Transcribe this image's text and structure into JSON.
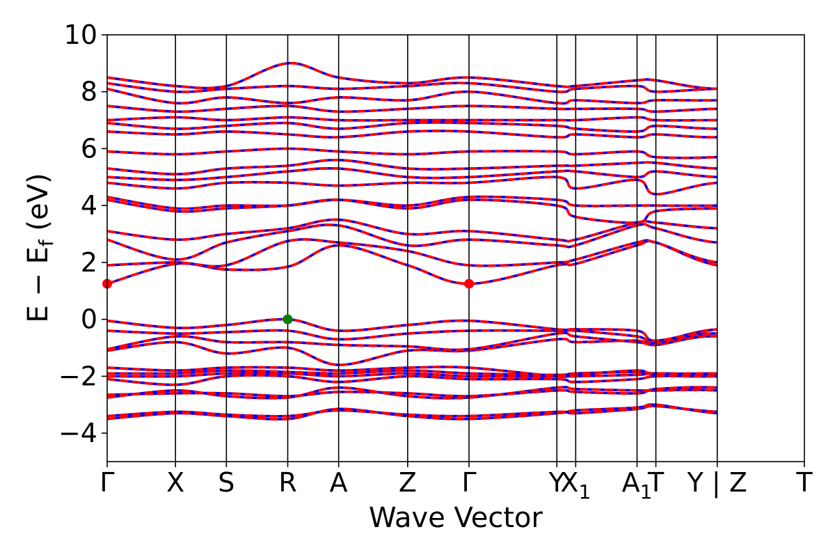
{
  "chart_data": {
    "type": "line",
    "xlabel": "Wave Vector",
    "ylabel": "E − E",
    "ylabel_subscript": "f",
    "ylabel_unit": " (eV)",
    "ylim": [
      -5,
      10
    ],
    "yticks": [
      {
        "value": 10,
        "label": "10"
      },
      {
        "value": 8,
        "label": "8"
      },
      {
        "value": 6,
        "label": "6"
      },
      {
        "value": 4,
        "label": "4"
      },
      {
        "value": 2,
        "label": "2"
      },
      {
        "value": 0,
        "label": "0"
      },
      {
        "value": -2,
        "label": "−2"
      },
      {
        "value": -4,
        "label": "−4"
      }
    ],
    "xlim": [
      0,
      10
    ],
    "kpoints": [
      {
        "x": 0.0,
        "label": "Γ",
        "sub": ""
      },
      {
        "x": 0.98,
        "label": "X",
        "sub": ""
      },
      {
        "x": 1.71,
        "label": "S",
        "sub": ""
      },
      {
        "x": 2.59,
        "label": "R",
        "sub": ""
      },
      {
        "x": 3.32,
        "label": "A",
        "sub": ""
      },
      {
        "x": 4.31,
        "label": "Z",
        "sub": ""
      },
      {
        "x": 5.19,
        "label": "Γ",
        "sub": ""
      },
      {
        "x": 6.45,
        "label": "Y",
        "sub": ""
      },
      {
        "x": 6.72,
        "label": "X",
        "sub": "1"
      },
      {
        "x": 7.6,
        "label": "A",
        "sub": "1"
      },
      {
        "x": 7.87,
        "label": "T",
        "sub": ""
      },
      {
        "x": 8.75,
        "label": "Y | Z",
        "sub": ""
      },
      {
        "x": 10.0,
        "label": "T",
        "sub": ""
      }
    ],
    "series_styles": [
      {
        "color": "#0000ff",
        "style": "solid"
      },
      {
        "color": "#ff0000",
        "style": "dashed"
      }
    ],
    "markers": [
      {
        "name": "cbm",
        "x": 0.0,
        "y": 1.25,
        "color": "#ff0000"
      },
      {
        "name": "cbm",
        "x": 5.19,
        "y": 1.25,
        "color": "#ff0000"
      },
      {
        "name": "vbm",
        "x": 2.59,
        "y": 0.0,
        "color": "#008000"
      }
    ],
    "bands": [
      [
        -3.5,
        -3.3,
        -3.4,
        -3.5,
        -3.15,
        -3.4,
        -3.5,
        -3.3,
        -3.2,
        -3.1,
        -3.0,
        -3.3,
        -3.4,
        -3.0
      ],
      [
        -3.4,
        -3.25,
        -3.35,
        -3.4,
        -3.2,
        -3.35,
        -3.4,
        -3.25,
        -3.3,
        -3.15,
        -3.05,
        -3.25,
        -3.35,
        -3.05
      ],
      [
        -2.75,
        -2.5,
        -2.7,
        -2.75,
        -2.4,
        -2.7,
        -2.75,
        -2.4,
        -2.45,
        -2.5,
        -2.5,
        -2.5,
        -2.8,
        -2.6
      ],
      [
        -2.65,
        -2.6,
        -2.6,
        -2.7,
        -2.55,
        -2.6,
        -2.7,
        -2.5,
        -2.55,
        -2.6,
        -2.45,
        -2.4,
        -2.7,
        -2.5
      ],
      [
        -2.1,
        -2.3,
        -2.0,
        -2.0,
        -2.2,
        -2.0,
        -2.1,
        -2.1,
        -2.2,
        -2.1,
        -2.0,
        -2.0,
        -2.1,
        -2.0
      ],
      [
        -2.0,
        -2.0,
        -1.9,
        -1.9,
        -2.0,
        -1.9,
        -2.0,
        -2.0,
        -2.0,
        -1.95,
        -1.9,
        -1.95,
        -2.0,
        -1.95
      ],
      [
        -1.9,
        -1.9,
        -1.8,
        -1.85,
        -1.9,
        -1.8,
        -1.9,
        -1.95,
        -1.9,
        -1.85,
        -1.9,
        -1.9,
        -1.85,
        -1.9
      ],
      [
        -1.7,
        -1.8,
        -1.7,
        -1.7,
        -1.8,
        -1.7,
        -1.7,
        -2.0,
        -1.95,
        -1.8,
        -1.95,
        -2.0,
        -1.8,
        -1.8
      ],
      [
        -1.1,
        -0.8,
        -1.2,
        -1.0,
        -1.6,
        -1.1,
        -1.1,
        -0.7,
        -0.8,
        -0.75,
        -0.9,
        -0.6,
        -1.2,
        -0.8
      ],
      [
        -1.05,
        -0.6,
        -0.8,
        -0.8,
        -0.9,
        -0.95,
        -1.05,
        -0.5,
        -0.6,
        -0.8,
        -0.85,
        -0.5,
        -1.1,
        -0.85
      ],
      [
        -0.4,
        -0.5,
        -0.45,
        -0.4,
        -0.7,
        -0.5,
        -0.4,
        -0.4,
        -0.4,
        -0.6,
        -0.8,
        -0.35,
        -0.5,
        -0.8
      ],
      [
        -0.05,
        -0.3,
        -0.2,
        0.0,
        -0.4,
        -0.2,
        -0.05,
        -0.35,
        -0.35,
        -0.4,
        -0.75,
        -0.35,
        -0.15,
        -0.75
      ],
      [
        1.25,
        1.95,
        1.75,
        1.85,
        2.6,
        1.9,
        1.25,
        1.9,
        1.95,
        2.6,
        2.7,
        1.9,
        1.8,
        2.7
      ],
      [
        1.9,
        2.0,
        1.9,
        2.75,
        2.7,
        2.4,
        1.9,
        2.0,
        2.1,
        2.7,
        2.7,
        2.0,
        2.0,
        2.7
      ],
      [
        2.8,
        2.1,
        2.7,
        3.1,
        3.3,
        2.6,
        2.8,
        2.6,
        2.6,
        3.3,
        3.2,
        2.7,
        2.8,
        3.4
      ],
      [
        3.1,
        2.8,
        3.0,
        3.2,
        3.5,
        3.0,
        3.1,
        2.8,
        2.8,
        3.4,
        3.4,
        3.2,
        3.2,
        3.4
      ],
      [
        4.2,
        3.8,
        3.9,
        4.0,
        4.2,
        3.9,
        4.2,
        4.0,
        3.6,
        3.4,
        3.8,
        3.9,
        3.9,
        3.8
      ],
      [
        4.3,
        3.9,
        4.0,
        4.0,
        4.2,
        4.0,
        4.3,
        4.2,
        4.0,
        4.0,
        4.0,
        4.0,
        4.1,
        4.4
      ],
      [
        4.8,
        4.6,
        4.8,
        4.8,
        4.7,
        4.8,
        4.8,
        5.0,
        4.6,
        4.9,
        4.4,
        4.8,
        4.8,
        4.5
      ],
      [
        5.0,
        4.9,
        5.0,
        5.2,
        5.3,
        5.0,
        5.0,
        5.2,
        5.2,
        5.0,
        5.2,
        5.0,
        5.0,
        5.0
      ],
      [
        5.3,
        5.1,
        5.3,
        5.4,
        5.6,
        5.3,
        5.3,
        5.4,
        5.4,
        5.5,
        5.5,
        5.3,
        5.3,
        5.2
      ],
      [
        5.9,
        5.8,
        5.9,
        6.0,
        5.9,
        5.8,
        5.9,
        5.9,
        5.8,
        5.9,
        5.7,
        5.7,
        5.9,
        5.8
      ],
      [
        6.6,
        6.5,
        6.6,
        6.5,
        6.4,
        6.6,
        6.6,
        6.4,
        6.5,
        6.4,
        6.5,
        6.4,
        6.6,
        6.5
      ],
      [
        6.9,
        6.7,
        6.8,
        6.9,
        6.7,
        6.9,
        6.9,
        6.8,
        6.7,
        6.6,
        6.8,
        6.7,
        6.8,
        6.7
      ],
      [
        7.0,
        7.1,
        7.0,
        7.1,
        7.0,
        7.0,
        7.0,
        7.0,
        7.0,
        7.1,
        7.0,
        7.0,
        7.0,
        6.9
      ],
      [
        7.5,
        7.3,
        7.4,
        7.5,
        7.3,
        7.4,
        7.5,
        7.4,
        7.4,
        7.4,
        7.3,
        7.4,
        7.4,
        7.3
      ],
      [
        8.1,
        7.6,
        7.8,
        7.6,
        7.8,
        7.7,
        8.0,
        7.6,
        7.7,
        7.6,
        7.7,
        7.7,
        7.8,
        7.6
      ],
      [
        8.3,
        8.0,
        8.1,
        8.2,
        8.1,
        8.2,
        8.3,
        8.0,
        8.1,
        8.2,
        8.0,
        8.1,
        8.1,
        8.0
      ],
      [
        8.5,
        8.2,
        8.2,
        9.0,
        8.5,
        8.3,
        8.5,
        8.2,
        8.2,
        8.4,
        8.4,
        8.1,
        8.3,
        8.3
      ]
    ]
  }
}
